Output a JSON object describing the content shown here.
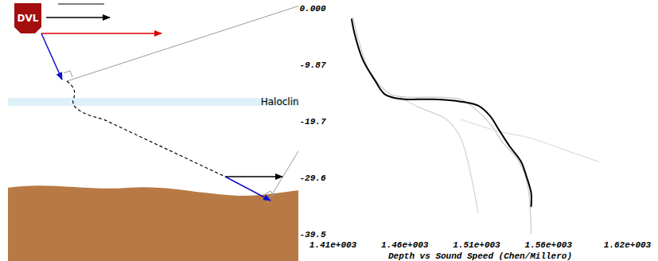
{
  "diagram": {
    "instrument": "DVL",
    "layer": "Halocline"
  },
  "chart_data": {
    "type": "line",
    "xlabel": "Depth vs Sound Speed (Chen/Millero)",
    "xlim": [
      1410,
      1615
    ],
    "xticks": [
      {
        "value": 1410,
        "label": "1.41e+003"
      },
      {
        "value": 1460,
        "label": "1.46e+003"
      },
      {
        "value": 1510,
        "label": "1.51e+003"
      },
      {
        "value": 1560,
        "label": "1.56e+003"
      },
      {
        "value": 1615,
        "label": "1.62e+003"
      }
    ],
    "ylim": [
      -39.5,
      0
    ],
    "yticks": [
      {
        "value": 0,
        "label": "0.000"
      },
      -9.87,
      -19.7,
      -29.6,
      -39.5
    ],
    "tick_labels": true,
    "grid": false,
    "series": [
      {
        "color": "#c8c8c8",
        "x": [
          1424,
          1428,
          1436,
          1450,
          1460,
          1499,
          1511,
          1521,
          1528,
          1538,
          1545,
          1548
        ],
        "values": [
          -1.6,
          -5.7,
          -11.2,
          -15.0,
          -15.5,
          -15.9,
          -18.0,
          -20.7,
          -23.4,
          -26.2,
          -30.2,
          -39.5
        ]
      },
      {
        "color": "#d2d2d2",
        "x": [
          1455,
          1470,
          1489,
          1499,
          1511
        ],
        "values": [
          -15.3,
          -17.3,
          -19.4,
          -22.7,
          -35.7
        ]
      },
      {
        "color": "#dcdcdc",
        "x": [
          1499,
          1524,
          1548,
          1572,
          1595
        ],
        "values": [
          -19.4,
          -21.4,
          -22.7,
          -24.8,
          -26.8
        ]
      },
      {
        "color": "#000000",
        "x": [
          1423,
          1425,
          1431,
          1439,
          1446,
          1456,
          1480,
          1499,
          1511,
          1519,
          1526,
          1533,
          1541,
          1545,
          1548,
          1548
        ],
        "values": [
          -1.9,
          -4.4,
          -9.1,
          -12.5,
          -15.0,
          -15.8,
          -15.9,
          -16.3,
          -17.0,
          -18.7,
          -21.4,
          -24.1,
          -26.8,
          -29.6,
          -32.3,
          -34.6
        ]
      }
    ]
  }
}
